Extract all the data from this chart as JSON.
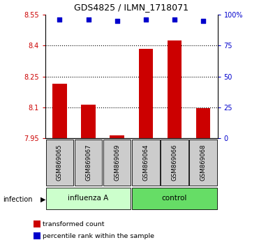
{
  "title": "GDS4825 / ILMN_1718071",
  "samples": [
    "GSM869065",
    "GSM869067",
    "GSM869069",
    "GSM869064",
    "GSM869066",
    "GSM869068"
  ],
  "red_values": [
    8.215,
    8.115,
    7.965,
    8.385,
    8.425,
    8.095
  ],
  "blue_values": [
    96,
    96,
    95,
    96,
    96,
    95
  ],
  "ylim_left": [
    7.95,
    8.55
  ],
  "ylim_right": [
    0,
    100
  ],
  "yticks_left": [
    7.95,
    8.1,
    8.25,
    8.4,
    8.55
  ],
  "ytick_labels_left": [
    "7.95",
    "8.1",
    "8.25",
    "8.4",
    "8.55"
  ],
  "yticks_right": [
    0,
    25,
    50,
    75,
    100
  ],
  "ytick_labels_right": [
    "0",
    "25",
    "50",
    "75",
    "100%"
  ],
  "grid_lines": [
    8.1,
    8.25,
    8.4
  ],
  "bar_color": "#cc0000",
  "dot_color": "#0000cc",
  "bar_width": 0.5,
  "background_color": "#ffffff",
  "label_color_left": "#cc0000",
  "label_color_right": "#0000cc",
  "tick_box_color": "#cccccc",
  "influenza_box_color": "#ccffcc",
  "control_box_color": "#66dd66",
  "legend_items": [
    {
      "color": "#cc0000",
      "label": "transformed count"
    },
    {
      "color": "#0000cc",
      "label": "percentile rank within the sample"
    }
  ]
}
